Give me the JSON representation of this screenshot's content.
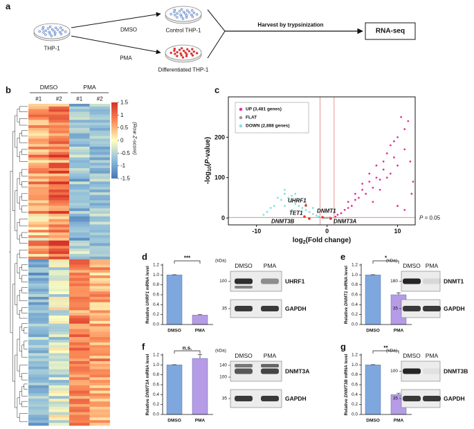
{
  "figure": {
    "a": {
      "label": "a",
      "start": "THP-1",
      "arms": [
        {
          "treatment": "DMSO",
          "result": "Control THP-1"
        },
        {
          "treatment": "PMA",
          "result": "Differentiated THP-1"
        }
      ],
      "step": "Harvest by trypsinization",
      "output": "RNA-seq"
    },
    "b": {
      "label": "b",
      "groups": [
        {
          "name": "DMSO",
          "reps": [
            "#1",
            "#2"
          ]
        },
        {
          "name": "PMA",
          "reps": [
            "#1",
            "#2"
          ]
        }
      ],
      "colorbar": {
        "label": "(Row Z-score)",
        "lim": [
          -1.5,
          1.5
        ],
        "ticks": [
          1.5,
          1,
          0.5,
          0,
          -0.5,
          -1,
          -1.5
        ]
      }
    }
  },
  "chart_data": [
    {
      "type": "scatter",
      "panel": "c",
      "xlabel": [
        "log",
        "2",
        "(Fold change)"
      ],
      "ylabel": [
        "-log",
        "10",
        "(",
        "P",
        "-value)"
      ],
      "xlim": [
        -14,
        12.5
      ],
      "xticks": [
        -10,
        0,
        10
      ],
      "ylim": [
        -17,
        300
      ],
      "yticks": [
        0,
        100,
        200
      ],
      "vlines": [
        -1,
        1
      ],
      "hline": 1.3,
      "hline_label": [
        "P",
        " = 0.05"
      ],
      "line_color": "#e07a7a",
      "legend": "upper left",
      "series": [
        {
          "name": "UP (3,481 genes)",
          "color": "#e6339b",
          "x": [
            1.2,
            1.5,
            2,
            2.5,
            3,
            3,
            3.5,
            4,
            4,
            4.5,
            5,
            5,
            5.5,
            6,
            6,
            6.5,
            7,
            7,
            7.5,
            8,
            8,
            8.5,
            9,
            9,
            9.5,
            10,
            10,
            10.5,
            11,
            11,
            11.5,
            11.8,
            12.2,
            12,
            9.5,
            8.5,
            7.5,
            6.5,
            10,
            11
          ],
          "values": [
            3,
            8,
            12,
            20,
            25,
            40,
            30,
            45,
            60,
            50,
            70,
            85,
            60,
            90,
            110,
            75,
            100,
            130,
            95,
            140,
            120,
            160,
            110,
            180,
            150,
            200,
            130,
            250,
            170,
            220,
            240,
            140,
            90,
            60,
            190,
            100,
            70,
            40,
            30,
            20
          ]
        },
        {
          "name": "FLAT",
          "color": "#9a9a9a",
          "x": [
            -0.5,
            0,
            0.5,
            -0.3,
            0.3
          ],
          "values": [
            1,
            0.5,
            1,
            0.3,
            0.8
          ]
        },
        {
          "name": "DOWN (2,888 genes)",
          "color": "#86e0e0",
          "x": [
            -1.2,
            -1.5,
            -2,
            -2.5,
            -3,
            -3.5,
            -4,
            -4,
            -4.5,
            -5,
            -5,
            -5.5,
            -6,
            -6,
            -6.5,
            -7,
            -7.5,
            -8,
            -8.5,
            -9,
            -3,
            -2,
            -5,
            -4.5,
            -6
          ],
          "values": [
            3,
            6,
            10,
            15,
            20,
            25,
            30,
            45,
            35,
            40,
            55,
            50,
            60,
            70,
            45,
            50,
            30,
            25,
            15,
            8,
            35,
            25,
            20,
            60,
            30
          ]
        }
      ],
      "annotations": [
        {
          "text": "UHRF1",
          "color": "#000000"
        },
        {
          "text": "TET1",
          "color": "#9b30d0"
        },
        {
          "text": "DNMT3B",
          "color": "#000000"
        },
        {
          "text": "DNMT1",
          "color": "#000000"
        },
        {
          "text": "DNMT3A",
          "color": "#1a3bd6"
        }
      ]
    },
    {
      "type": "bar",
      "panel": "d",
      "ylabel": [
        "Relative ",
        "UHRF1",
        " mRNA level"
      ],
      "categories": [
        "DMSO",
        "PMA"
      ],
      "values": [
        1.0,
        0.19
      ],
      "errors": [
        0.005,
        0.01
      ],
      "colors": [
        "#7ea7de",
        "#b69be6"
      ],
      "ylim": [
        0,
        1.2
      ],
      "yticks": [
        {
          "value": 0,
          "label": "0.0"
        },
        0.2,
        0.4,
        0.6,
        0.8,
        {
          "value": 1,
          "label": "1.0"
        },
        1.2
      ],
      "significance": "***",
      "blot": {
        "unit": "(kDa)",
        "lanes": [
          "DMSO",
          "PMA"
        ],
        "bands": [
          {
            "protein": "UHRF1",
            "markers": [
              100
            ]
          },
          {
            "protein": "GAPDH",
            "markers": [
              35
            ]
          }
        ]
      }
    },
    {
      "type": "bar",
      "panel": "e",
      "ylabel": [
        "Relative ",
        "DNMT1",
        " mRNA level"
      ],
      "categories": [
        "DMSO",
        "PMA"
      ],
      "values": [
        1.0,
        0.6
      ],
      "errors": [
        0.005,
        0.04
      ],
      "colors": [
        "#7ea7de",
        "#b69be6"
      ],
      "ylim": [
        0,
        1.2
      ],
      "yticks": [
        {
          "value": 0,
          "label": "0.0"
        },
        0.2,
        0.4,
        0.6,
        0.8,
        {
          "value": 1,
          "label": "1.0"
        },
        1.2
      ],
      "significance": "*",
      "blot": {
        "unit": "(kDa)",
        "lanes": [
          "DMSO",
          "PMA"
        ],
        "bands": [
          {
            "protein": "DNMT1",
            "markers": [
              180
            ]
          },
          {
            "protein": "GAPDH",
            "markers": [
              35
            ]
          }
        ]
      }
    },
    {
      "type": "bar",
      "panel": "f",
      "ylabel": [
        "Relative ",
        "DNMT3A",
        " mRNA level"
      ],
      "categories": [
        "DMSO",
        "PMA"
      ],
      "values": [
        1.0,
        1.13
      ],
      "errors": [
        0.005,
        0.08
      ],
      "colors": [
        "#7ea7de",
        "#b69be6"
      ],
      "ylim": [
        0,
        1.2
      ],
      "yticks": [
        {
          "value": 0,
          "label": "0.0"
        },
        0.2,
        0.4,
        0.6,
        0.8,
        {
          "value": 1,
          "label": "1.0"
        },
        1.2
      ],
      "significance": "n.s.",
      "blot": {
        "unit": "(kDa)",
        "lanes": [
          "DMSO",
          "PMA"
        ],
        "bands": [
          {
            "protein": "DNMT3A",
            "markers": [
              140,
              100
            ]
          },
          {
            "protein": "GAPDH",
            "markers": [
              35
            ]
          }
        ]
      }
    },
    {
      "type": "bar",
      "panel": "g",
      "ylabel": [
        "Relative ",
        "DNMT3B",
        " mRNA level"
      ],
      "categories": [
        "DMSO",
        "PMA"
      ],
      "values": [
        1.0,
        0.4
      ],
      "errors": [
        0.005,
        0.03
      ],
      "colors": [
        "#7ea7de",
        "#b69be6"
      ],
      "ylim": [
        0,
        1.2
      ],
      "yticks": [
        {
          "value": 0,
          "label": "0.0"
        },
        0.2,
        0.4,
        0.6,
        0.8,
        {
          "value": 1,
          "label": "1.0"
        },
        1.2
      ],
      "significance": "**",
      "blot": {
        "unit": "(kDa)",
        "lanes": [
          "DMSO",
          "PMA"
        ],
        "bands": [
          {
            "protein": "DNMT3B",
            "markers": [
              100
            ]
          },
          {
            "protein": "GAPDH",
            "markers": [
              35
            ]
          }
        ]
      }
    }
  ]
}
